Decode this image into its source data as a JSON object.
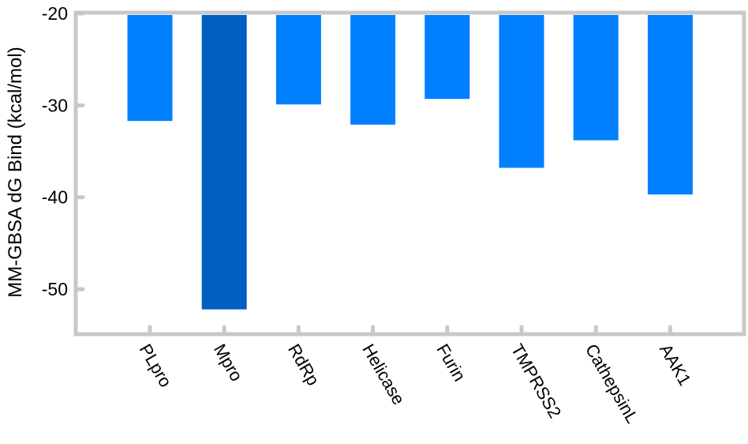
{
  "chart_data": {
    "type": "bar",
    "title": "",
    "xlabel": "",
    "ylabel": "MM-GBSA dG Bind (kcal/mol)",
    "categories": [
      "PLpro",
      "Mpro",
      "RdRp",
      "Helicase",
      "Furin",
      "TMPRSS2",
      "CathepsinL",
      "AAK1"
    ],
    "values": [
      -31.7,
      -52.2,
      -29.9,
      -32.1,
      -29.3,
      -36.8,
      -33.8,
      -39.7
    ],
    "highlight_category": "Mpro",
    "yticks": [
      -20,
      -30,
      -40,
      -50
    ],
    "yticklabels": [
      "-20",
      "-30",
      "-40",
      "-50"
    ],
    "ylim": [
      -55,
      -20
    ],
    "grid": false,
    "legend": "none",
    "colors": {
      "bar": "#0080ff",
      "highlight": "#0060c0",
      "frame": "#c8c8c8"
    }
  }
}
